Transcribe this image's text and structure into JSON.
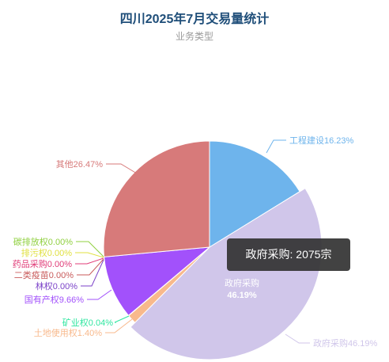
{
  "chart_data": {
    "type": "pie",
    "title": "四川2025年7月交易量统计",
    "subtitle": "业务类型",
    "slices": [
      {
        "name": "工程建设",
        "percent": 16.23,
        "color": "#6eb4ec"
      },
      {
        "name": "政府采购",
        "percent": 46.19,
        "color": "#d0c6ea"
      },
      {
        "name": "土地使用权",
        "percent": 1.4,
        "color": "#f8b98c"
      },
      {
        "name": "矿业权",
        "percent": 0.04,
        "color": "#2fe6a0"
      },
      {
        "name": "国有产权",
        "percent": 9.66,
        "color": "#a251fb"
      },
      {
        "name": "林权",
        "percent": 0.0,
        "color": "#7b42c8"
      },
      {
        "name": "二类疫苗",
        "percent": 0.0,
        "color": "#c85a5a"
      },
      {
        "name": "药品采购",
        "percent": 0.0,
        "color": "#e03c78"
      },
      {
        "name": "排污权",
        "percent": 0.0,
        "color": "#e0e040"
      },
      {
        "name": "碳排放权",
        "percent": 0.0,
        "color": "#90d040"
      },
      {
        "name": "其他",
        "percent": 26.47,
        "color": "#d77a7a"
      }
    ],
    "labels": [
      {
        "text": "工程建设16.23%"
      },
      {
        "text": "政府采购46.19%"
      },
      {
        "text": "土地使用权1.40%"
      },
      {
        "text": "矿业权0.04%"
      },
      {
        "text": "国有产权9.66%"
      },
      {
        "text": "林权0.00%"
      },
      {
        "text": "二类疫苗0.00%"
      },
      {
        "text": "药品采购0.00%"
      },
      {
        "text": "排污权0.00%"
      },
      {
        "text": "碳排放权0.00%"
      },
      {
        "text": "其他26.47%"
      }
    ],
    "emphasis": {
      "name": "政府采购",
      "percent_text": "46.19%"
    },
    "tooltip": {
      "name": "政府采购",
      "value": 2075,
      "unit": "宗",
      "text": "政府采购: 2075宗"
    }
  }
}
